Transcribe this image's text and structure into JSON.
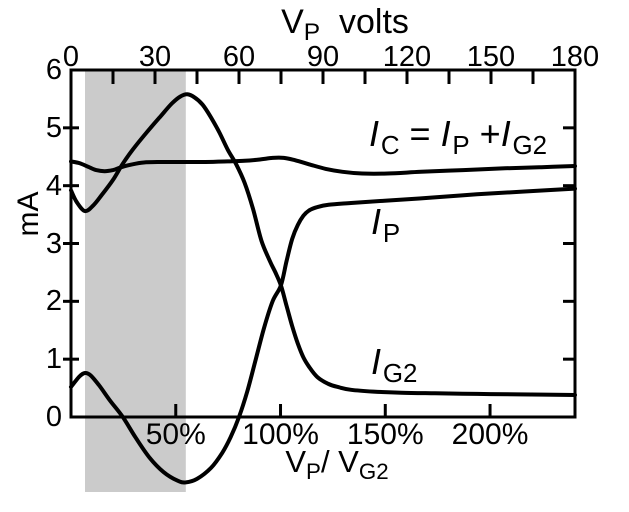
{
  "figure": {
    "background": "#ffffff",
    "ink_color": "#000000",
    "band_color": "#cbcbcb"
  },
  "chart_data": {
    "type": "line",
    "title": "V_P volts",
    "title_parts": [
      {
        "t": "V"
      },
      {
        "t": "P",
        "sub": true
      },
      {
        "t": "  volts"
      }
    ],
    "x_axis_top": {
      "label": "V_P volts",
      "unit": "volts",
      "major_ticks": [
        0,
        30,
        60,
        90,
        120,
        150,
        180
      ],
      "major_tick_labels": [
        "0",
        "30",
        "60",
        "90",
        "120",
        "150",
        "180"
      ],
      "minor_ticks": [
        15,
        45,
        75,
        105,
        135,
        165
      ],
      "range_volts": [
        0,
        240
      ],
      "shown_range_volts": [
        0,
        180
      ]
    },
    "x_axis_bottom": {
      "label": "V_P / V_G2",
      "label_parts": [
        {
          "t": "V"
        },
        {
          "t": "P",
          "sub": true
        },
        {
          "t": "/ "
        },
        {
          "t": "V"
        },
        {
          "t": "G2",
          "sub": true
        }
      ],
      "tick_labels": [
        "50%",
        "100%",
        "150%",
        "200%"
      ],
      "tick_values_percent": [
        50,
        100,
        150,
        200
      ],
      "range_percent": [
        0,
        240
      ]
    },
    "y_axis": {
      "label": "mA",
      "ticks": [
        0,
        1,
        2,
        3,
        4,
        5,
        6
      ],
      "tick_labels": [
        "0",
        "1",
        "2",
        "3",
        "4",
        "5",
        "6"
      ],
      "range_ma": [
        0,
        6
      ]
    },
    "shaded_band": {
      "from_volts": 5,
      "to_volts": 41,
      "color": "#cbcbcb"
    },
    "grid": "off",
    "legend": "inline-curve-labels",
    "series": [
      {
        "id": "ic",
        "name": "I_C = I_P + I_G2",
        "label_parts": [
          {
            "t": "I",
            "i": true
          },
          {
            "t": "C",
            "sub": true
          },
          {
            "t": " = "
          },
          {
            "t": "I",
            "i": true
          },
          {
            "t": "P",
            "sub": true
          },
          {
            "t": " +"
          },
          {
            "t": "I",
            "i": true
          },
          {
            "t": "G2",
            "sub": true
          }
        ],
        "points_volts_ma": [
          [
            0,
            4.42
          ],
          [
            3,
            4.39
          ],
          [
            6,
            4.33
          ],
          [
            9,
            4.27
          ],
          [
            12,
            4.25
          ],
          [
            15,
            4.27
          ],
          [
            18,
            4.32
          ],
          [
            22,
            4.37
          ],
          [
            26,
            4.4
          ],
          [
            32,
            4.41
          ],
          [
            40,
            4.41
          ],
          [
            48,
            4.41
          ],
          [
            56,
            4.42
          ],
          [
            62,
            4.43
          ],
          [
            67,
            4.45
          ],
          [
            72,
            4.48
          ],
          [
            76,
            4.48
          ],
          [
            80,
            4.44
          ],
          [
            85,
            4.37
          ],
          [
            91,
            4.29
          ],
          [
            97,
            4.24
          ],
          [
            104,
            4.21
          ],
          [
            113,
            4.21
          ],
          [
            125,
            4.24
          ],
          [
            140,
            4.27
          ],
          [
            155,
            4.3
          ],
          [
            168,
            4.32
          ],
          [
            180,
            4.34
          ]
        ]
      },
      {
        "id": "ip",
        "name": "I_P",
        "label_parts": [
          {
            "t": "I",
            "i": true
          },
          {
            "t": "P",
            "sub": true
          }
        ],
        "points_volts_ma": [
          [
            0,
            0.52
          ],
          [
            3,
            0.7
          ],
          [
            5,
            0.76
          ],
          [
            7,
            0.72
          ],
          [
            10,
            0.55
          ],
          [
            14,
            0.28
          ],
          [
            18.5,
            0
          ],
          [
            23,
            -0.35
          ],
          [
            28,
            -0.7
          ],
          [
            33,
            -0.95
          ],
          [
            38,
            -1.1
          ],
          [
            41,
            -1.13
          ],
          [
            45,
            -1.07
          ],
          [
            50,
            -0.88
          ],
          [
            54,
            -0.62
          ],
          [
            57,
            -0.35
          ],
          [
            60,
            0
          ],
          [
            63,
            0.45
          ],
          [
            66,
            1.0
          ],
          [
            69,
            1.55
          ],
          [
            72,
            2.0
          ],
          [
            75,
            2.28
          ],
          [
            77,
            2.7
          ],
          [
            79,
            3.08
          ],
          [
            81,
            3.32
          ],
          [
            83,
            3.48
          ],
          [
            85,
            3.57
          ],
          [
            88,
            3.63
          ],
          [
            92,
            3.67
          ],
          [
            100,
            3.7
          ],
          [
            112,
            3.74
          ],
          [
            128,
            3.79
          ],
          [
            145,
            3.85
          ],
          [
            162,
            3.9
          ],
          [
            180,
            3.95
          ]
        ]
      },
      {
        "id": "ig2",
        "name": "I_G2",
        "label_parts": [
          {
            "t": "I",
            "i": true
          },
          {
            "t": "G2",
            "sub": true
          }
        ],
        "points_volts_ma": [
          [
            0,
            3.92
          ],
          [
            2,
            3.72
          ],
          [
            5,
            3.56
          ],
          [
            8,
            3.66
          ],
          [
            11,
            3.84
          ],
          [
            15,
            4.1
          ],
          [
            18.5,
            4.38
          ],
          [
            22,
            4.62
          ],
          [
            27,
            4.92
          ],
          [
            32,
            5.2
          ],
          [
            36,
            5.42
          ],
          [
            39,
            5.54
          ],
          [
            41.5,
            5.58
          ],
          [
            44,
            5.53
          ],
          [
            47,
            5.4
          ],
          [
            50,
            5.18
          ],
          [
            53,
            4.92
          ],
          [
            56,
            4.62
          ],
          [
            59,
            4.37
          ],
          [
            62,
            4.05
          ],
          [
            65,
            3.6
          ],
          [
            68,
            3.05
          ],
          [
            71,
            2.7
          ],
          [
            73,
            2.5
          ],
          [
            75,
            2.27
          ],
          [
            77,
            1.92
          ],
          [
            79,
            1.57
          ],
          [
            81,
            1.27
          ],
          [
            83,
            1.03
          ],
          [
            85,
            0.87
          ],
          [
            88,
            0.69
          ],
          [
            92,
            0.57
          ],
          [
            96,
            0.51
          ],
          [
            100,
            0.47
          ],
          [
            108,
            0.44
          ],
          [
            118,
            0.42
          ],
          [
            130,
            0.41
          ],
          [
            145,
            0.4
          ],
          [
            160,
            0.39
          ],
          [
            180,
            0.38
          ]
        ]
      }
    ]
  }
}
